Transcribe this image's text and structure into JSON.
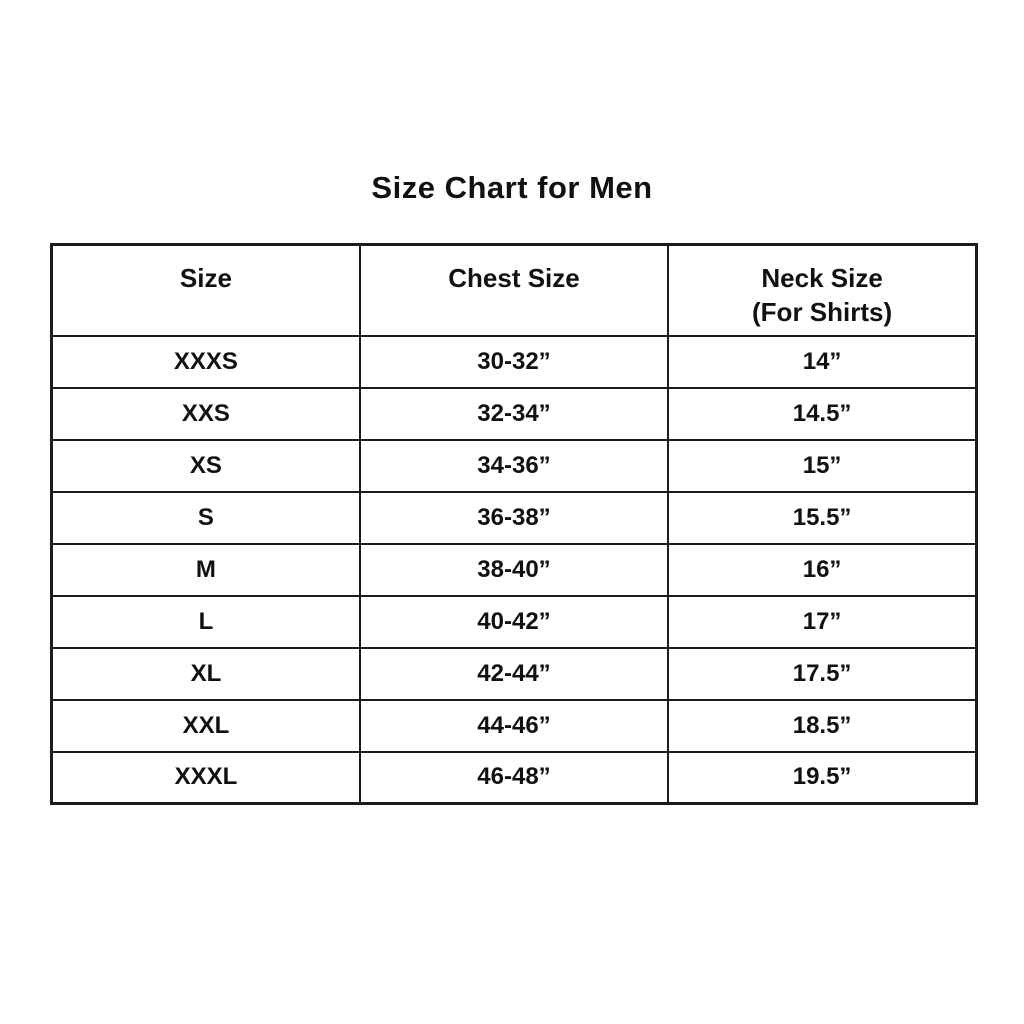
{
  "page": {
    "background_color": "#ffffff",
    "text_color": "#111111",
    "border_color": "#1c1c1c"
  },
  "chart_data": {
    "type": "table",
    "title": "Size Chart for Men",
    "headers": [
      {
        "label": "Size",
        "sublabel": ""
      },
      {
        "label": "Chest Size",
        "sublabel": ""
      },
      {
        "label": "Neck Size",
        "sublabel": "(For Shirts)"
      }
    ],
    "columns": [
      "Size",
      "Chest Size",
      "Neck Size (For Shirts)"
    ],
    "rows": [
      [
        "XXXS",
        "30-32”",
        "14”"
      ],
      [
        "XXS",
        "32-34”",
        "14.5”"
      ],
      [
        "XS",
        "34-36”",
        "15”"
      ],
      [
        "S",
        "36-38”",
        "15.5”"
      ],
      [
        "M",
        "38-40”",
        "16”"
      ],
      [
        "L",
        "40-42”",
        "17”"
      ],
      [
        "XL",
        "42-44”",
        "17.5”"
      ],
      [
        "XXL",
        "44-46”",
        "18.5”"
      ],
      [
        "XXXL",
        "46-48”",
        "19.5”"
      ]
    ]
  }
}
